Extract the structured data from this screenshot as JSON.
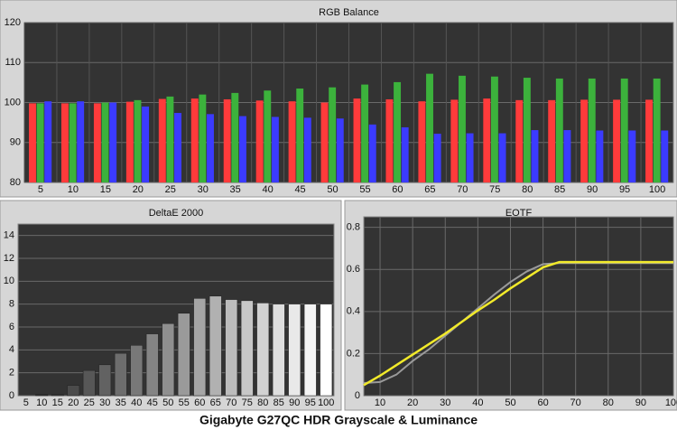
{
  "caption": "Gigabyte G27QC HDR Grayscale & Luminance",
  "chart_data": [
    {
      "type": "groupbar",
      "title": "RGB Balance",
      "categories": [
        "5",
        "10",
        "15",
        "20",
        "25",
        "30",
        "35",
        "40",
        "45",
        "50",
        "55",
        "60",
        "65",
        "70",
        "75",
        "80",
        "85",
        "90",
        "95",
        "100"
      ],
      "series": [
        {
          "color": "#ff3b3b",
          "values": [
            99.8,
            99.8,
            99.8,
            100.2,
            100.9,
            101,
            100.8,
            100.5,
            100.3,
            100,
            101,
            100.8,
            100.3,
            100.7,
            101,
            100.6,
            100.6,
            100.7,
            100.7,
            100.7
          ]
        },
        {
          "color": "#3cb23c",
          "values": [
            99.8,
            99.8,
            100,
            100.6,
            101.5,
            102,
            102.4,
            103,
            103.5,
            103.8,
            104.5,
            105.1,
            107.2,
            106.7,
            106.5,
            106.2,
            106,
            106,
            106,
            106
          ]
        },
        {
          "color": "#3b3bff",
          "values": [
            100.3,
            100.3,
            100,
            99,
            97.4,
            97.1,
            96.6,
            96.4,
            96.2,
            96,
            94.5,
            93.8,
            92.2,
            92.3,
            92.3,
            93.1,
            93.1,
            93,
            93,
            93
          ]
        }
      ],
      "ylim": [
        80,
        120
      ],
      "yticks": [
        80,
        90,
        100,
        110,
        120
      ],
      "grid": true
    },
    {
      "type": "bar",
      "title": "DeltaE 2000",
      "categories": [
        "5",
        "10",
        "15",
        "20",
        "25",
        "30",
        "35",
        "40",
        "45",
        "50",
        "55",
        "60",
        "65",
        "70",
        "75",
        "80",
        "85",
        "90",
        "95",
        "100"
      ],
      "values": [
        0,
        0.1,
        0.1,
        0.9,
        2.2,
        2.7,
        3.7,
        4.4,
        5.4,
        6.3,
        7.2,
        8.5,
        8.7,
        8.4,
        8.3,
        8.1,
        8,
        8,
        8,
        8
      ],
      "colors": [
        "#2a2a2a",
        "#353535",
        "#404040",
        "#4b4b4b",
        "#575757",
        "#626262",
        "#6d6d6d",
        "#787878",
        "#848484",
        "#8f8f8f",
        "#9a9a9a",
        "#a5a5a5",
        "#b1b1b1",
        "#bcbcbc",
        "#c7c7c7",
        "#d2d2d2",
        "#dedede",
        "#e9e9e9",
        "#f4f4f4",
        "#ffffff"
      ],
      "ylim": [
        0,
        15
      ],
      "yticks": [
        0,
        2,
        4,
        6,
        8,
        10,
        12,
        14
      ],
      "grid": true
    },
    {
      "type": "line",
      "title": "EOTF",
      "x": [
        5,
        10,
        15,
        20,
        25,
        30,
        35,
        40,
        45,
        50,
        55,
        60,
        65,
        70,
        75,
        80,
        85,
        90,
        95,
        100
      ],
      "series": [
        {
          "color": "#9a9a9a",
          "values": [
            0.06,
            0.065,
            0.1,
            0.165,
            0.22,
            0.285,
            0.35,
            0.415,
            0.48,
            0.54,
            0.59,
            0.625,
            0.63,
            0.63,
            0.63,
            0.63,
            0.63,
            0.63,
            0.63,
            0.63
          ]
        },
        {
          "color": "#f2ea2a",
          "values": [
            0.05,
            0.095,
            0.145,
            0.195,
            0.245,
            0.295,
            0.35,
            0.405,
            0.455,
            0.51,
            0.56,
            0.61,
            0.635,
            0.635,
            0.635,
            0.635,
            0.635,
            0.635,
            0.635,
            0.635
          ]
        }
      ],
      "xlim": [
        5,
        100
      ],
      "xticks": [
        10,
        20,
        30,
        40,
        50,
        60,
        70,
        80,
        90,
        100
      ],
      "ylim": [
        0,
        0.85
      ],
      "yticks": [
        0,
        0.2,
        0.4,
        0.6,
        0.8
      ],
      "grid": true
    }
  ]
}
